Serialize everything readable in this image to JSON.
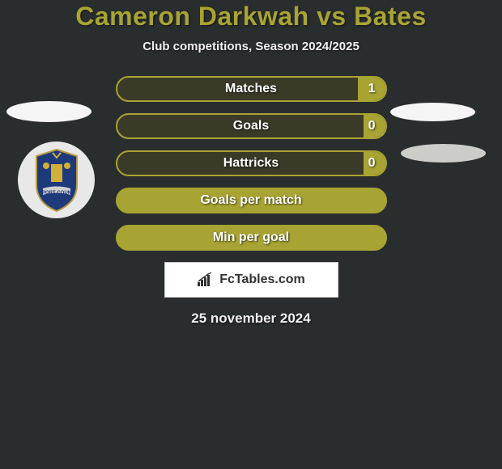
{
  "title": "Cameron Darkwah vs Bates",
  "subtitle": "Club competitions, Season 2024/2025",
  "stats": [
    {
      "label": "Matches",
      "value": "1",
      "fill_pct": 10,
      "full_fill": false
    },
    {
      "label": "Goals",
      "value": "0",
      "fill_pct": 8,
      "full_fill": false
    },
    {
      "label": "Hattricks",
      "value": "0",
      "fill_pct": 8,
      "full_fill": false
    },
    {
      "label": "Goals per match",
      "value": "",
      "fill_pct": 0,
      "full_fill": true
    },
    {
      "label": "Min per goal",
      "value": "",
      "fill_pct": 0,
      "full_fill": true
    }
  ],
  "brand_text": "FcTables.com",
  "date_text": "25 november 2024",
  "colors": {
    "accent": "#a8a433",
    "bg": "#2a2d2e",
    "pill_bg": "#3b3a28"
  }
}
